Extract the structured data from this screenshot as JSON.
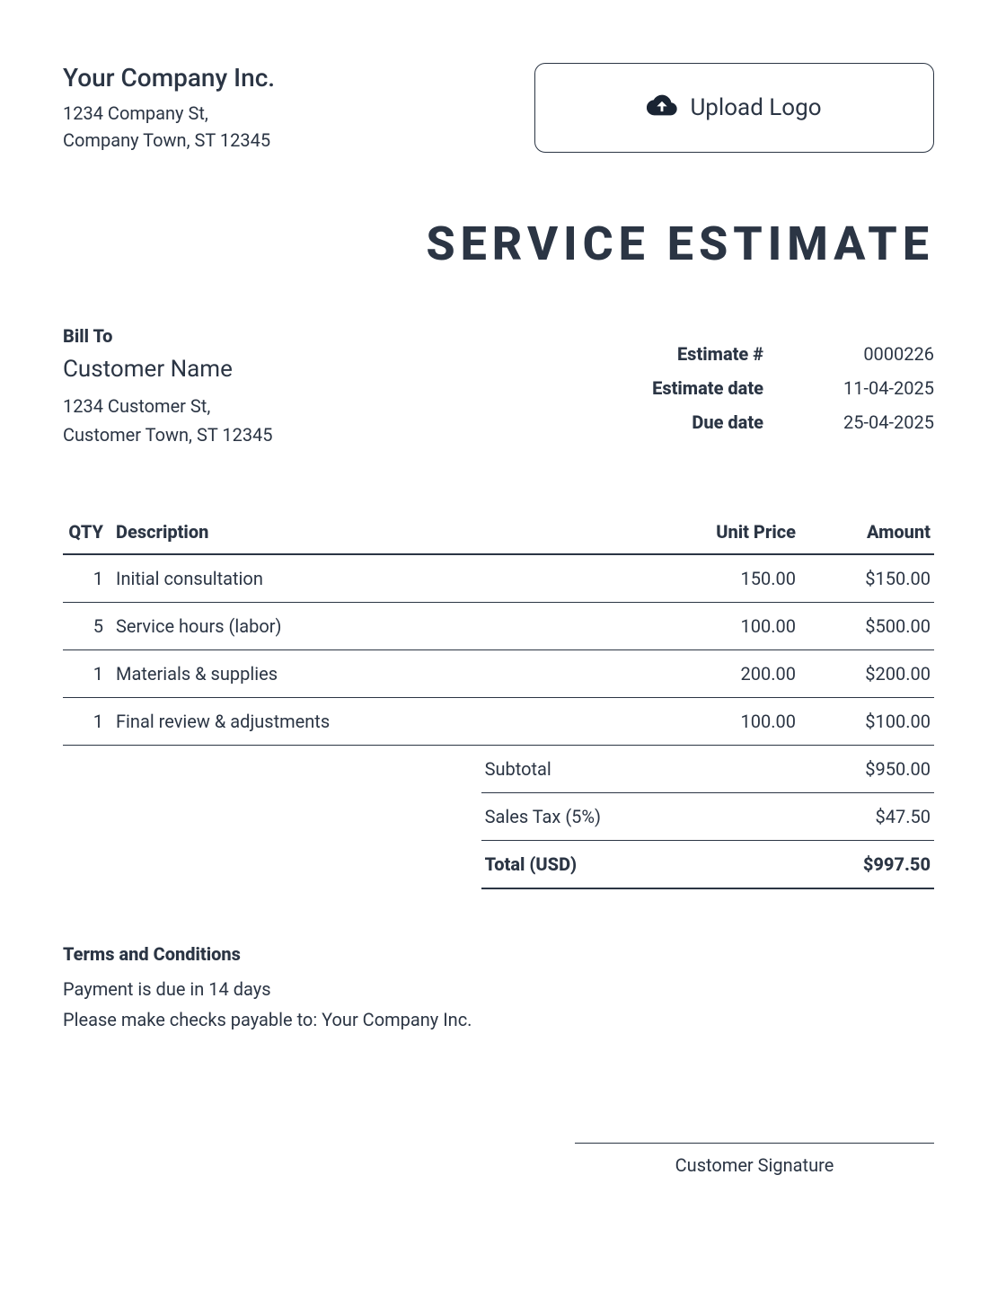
{
  "company": {
    "name": "Your Company Inc.",
    "address_line1": "1234 Company St,",
    "address_line2": "Company Town, ST 12345"
  },
  "upload_logo_label": "Upload Logo",
  "title": "SERVICE ESTIMATE",
  "bill_to": {
    "label": "Bill To",
    "name": "Customer Name",
    "address_line1": "1234 Customer St,",
    "address_line2": "Customer Town, ST 12345"
  },
  "meta": {
    "estimate_number_label": "Estimate #",
    "estimate_number": "0000226",
    "estimate_date_label": "Estimate date",
    "estimate_date": "11-04-2025",
    "due_date_label": "Due date",
    "due_date": "25-04-2025"
  },
  "columns": {
    "qty": "QTY",
    "description": "Description",
    "unit_price": "Unit Price",
    "amount": "Amount"
  },
  "items": [
    {
      "qty": "1",
      "description": "Initial consultation",
      "unit_price": "150.00",
      "amount": "$150.00"
    },
    {
      "qty": "5",
      "description": "Service hours (labor)",
      "unit_price": "100.00",
      "amount": "$500.00"
    },
    {
      "qty": "1",
      "description": "Materials & supplies",
      "unit_price": "200.00",
      "amount": "$200.00"
    },
    {
      "qty": "1",
      "description": "Final review & adjustments",
      "unit_price": "100.00",
      "amount": "$100.00"
    }
  ],
  "totals": {
    "subtotal_label": "Subtotal",
    "subtotal": "$950.00",
    "tax_label": "Sales Tax (5%)",
    "tax": "$47.50",
    "total_label": "Total (USD)",
    "total": "$997.50"
  },
  "terms": {
    "label": "Terms and Conditions",
    "line1": "Payment is due in 14 days",
    "line2": "Please make checks payable to: Your Company Inc."
  },
  "signature_label": "Customer Signature",
  "colors": {
    "text": "#2b3544",
    "border": "#2b3544",
    "background": "#ffffff"
  }
}
